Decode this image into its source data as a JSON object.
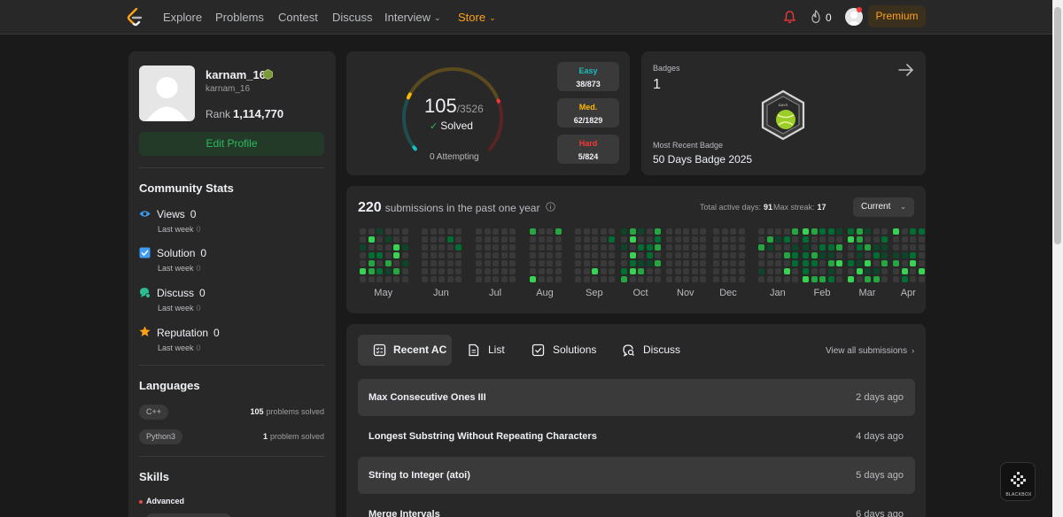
{
  "nav": {
    "items": [
      "Explore",
      "Problems",
      "Contest",
      "Discuss",
      "Interview"
    ],
    "store": "Store",
    "streak_count": "0",
    "premium": "Premium"
  },
  "profile": {
    "username": "karnam_16",
    "handle": "karnam_16",
    "rank_label": "Rank",
    "rank_value": "1,114,770",
    "edit_button": "Edit Profile"
  },
  "community": {
    "title": "Community Stats",
    "stats": [
      {
        "label": "Views",
        "value": "0",
        "sub_label": "Last week",
        "sub_value": "0",
        "color": "#3f9cf5"
      },
      {
        "label": "Solution",
        "value": "0",
        "sub_label": "Last week",
        "sub_value": "0",
        "color": "#3f9cf5"
      },
      {
        "label": "Discuss",
        "value": "0",
        "sub_label": "Last week",
        "sub_value": "0",
        "color": "#2cbb93"
      },
      {
        "label": "Reputation",
        "value": "0",
        "sub_label": "Last week",
        "sub_value": "0",
        "color": "#ffa116"
      }
    ]
  },
  "languages": {
    "title": "Languages",
    "items": [
      {
        "name": "C++",
        "count": "105",
        "suffix": "problems solved"
      },
      {
        "name": "Python3",
        "count": "1",
        "suffix": "problem solved"
      }
    ]
  },
  "skills": {
    "title": "Skills",
    "level": "Advanced"
  },
  "progress": {
    "solved": "105",
    "total": "/3526",
    "solved_label": "Solved",
    "attempting": "0 Attempting",
    "difficulties": [
      {
        "name": "Easy",
        "count": "38/873",
        "color": "#1cbaba"
      },
      {
        "name": "Med.",
        "count": "62/1829",
        "color": "#ffb700"
      },
      {
        "name": "Hard",
        "count": "5/824",
        "color": "#f63737"
      }
    ]
  },
  "badges": {
    "label": "Badges",
    "count": "1",
    "badge_icon_text": "DAYS",
    "recent_label": "Most Recent Badge",
    "recent_name": "50 Days Badge 2025"
  },
  "heatmap": {
    "submissions": "220",
    "submissions_label": "submissions in the past one year",
    "active_days_label": "Total active days:",
    "active_days": "91",
    "max_streak_label": "Max streak:",
    "max_streak": "17",
    "period": "Current",
    "months": [
      "May",
      "Jun",
      "Jul",
      "Aug",
      "Sep",
      "Oct",
      "Nov",
      "Dec",
      "Jan",
      "Feb",
      "Mar",
      "Apr"
    ],
    "colors": {
      "empty": "#393939",
      "level1": "#0e4429",
      "level2": "#006d32",
      "level3": "#26a641",
      "level4": "#39d353"
    }
  },
  "submissions": {
    "tabs": [
      "Recent AC",
      "List",
      "Solutions",
      "Discuss"
    ],
    "view_all": "View all submissions",
    "rows": [
      {
        "title": "Max Consecutive Ones III",
        "time": "2 days ago"
      },
      {
        "title": "Longest Substring Without Repeating Characters",
        "time": "4 days ago"
      },
      {
        "title": "String to Integer (atoi)",
        "time": "5 days ago"
      },
      {
        "title": "Merge Intervals",
        "time": "6 days ago"
      }
    ]
  },
  "widget": {
    "label": "BLACKBOX"
  }
}
